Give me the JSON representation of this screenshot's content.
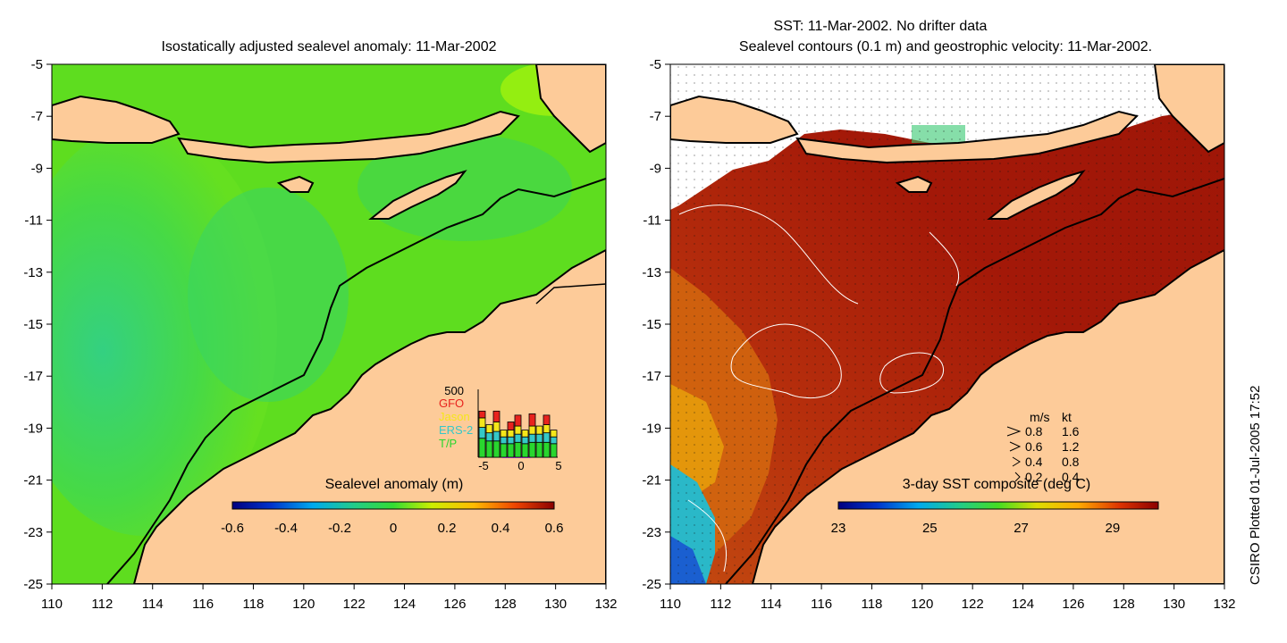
{
  "left_panel": {
    "title": "Isostatically adjusted sealevel anomaly: 11-Mar-2002",
    "colorbar": {
      "label": "Sealevel anomaly (m)",
      "ticks": [
        "-0.6",
        "-0.4",
        "-0.2",
        "0",
        "0.2",
        "0.4",
        "0.6"
      ]
    },
    "inset": {
      "top_value": "500",
      "legend": [
        {
          "label": "GFO",
          "color": "#e8231e"
        },
        {
          "label": "Jason",
          "color": "#f5e61a"
        },
        {
          "label": "ERS-2",
          "color": "#35c8c8"
        },
        {
          "label": "T/P",
          "color": "#29d62e"
        }
      ],
      "x_ticks": [
        "-5",
        "0",
        "5"
      ],
      "bars": [
        {
          "tp": 0.28,
          "ers": 0.16,
          "jason": 0.14,
          "gfo": 0.1
        },
        {
          "tp": 0.24,
          "ers": 0.12,
          "jason": 0.12,
          "gfo": 0.0
        },
        {
          "tp": 0.24,
          "ers": 0.14,
          "jason": 0.14,
          "gfo": 0.16
        },
        {
          "tp": 0.2,
          "ers": 0.1,
          "jason": 0.1,
          "gfo": 0.0
        },
        {
          "tp": 0.2,
          "ers": 0.1,
          "jason": 0.1,
          "gfo": 0.12
        },
        {
          "tp": 0.22,
          "ers": 0.12,
          "jason": 0.12,
          "gfo": 0.16
        },
        {
          "tp": 0.2,
          "ers": 0.1,
          "jason": 0.1,
          "gfo": 0.0
        },
        {
          "tp": 0.22,
          "ers": 0.12,
          "jason": 0.12,
          "gfo": 0.18
        },
        {
          "tp": 0.22,
          "ers": 0.12,
          "jason": 0.12,
          "gfo": 0.0
        },
        {
          "tp": 0.22,
          "ers": 0.14,
          "jason": 0.12,
          "gfo": 0.14
        },
        {
          "tp": 0.2,
          "ers": 0.1,
          "jason": 0.1,
          "gfo": 0.0
        }
      ]
    }
  },
  "right_panel": {
    "title_line1": "SST: 11-Mar-2002. No drifter data",
    "title_line2": "Sealevel contours (0.1 m) and geostrophic velocity: 11-Mar-2002.",
    "colorbar": {
      "label": "3-day SST composite (deg C)",
      "ticks": [
        "23",
        "25",
        "27",
        "29"
      ]
    },
    "velocity_key": {
      "header_ms": "m/s",
      "header_kt": "kt",
      "rows": [
        {
          "ms": "0.8",
          "kt": "1.6"
        },
        {
          "ms": "0.6",
          "kt": "1.2"
        },
        {
          "ms": "0.4",
          "kt": "0.8"
        },
        {
          "ms": "0.2",
          "kt": "0.4"
        }
      ]
    }
  },
  "axes": {
    "lat_ticks": [
      "-5",
      "-7",
      "-9",
      "-11",
      "-13",
      "-15",
      "-17",
      "-19",
      "-21",
      "-23",
      "-25"
    ],
    "lon_ticks": [
      "110",
      "112",
      "114",
      "116",
      "118",
      "120",
      "122",
      "124",
      "126",
      "128",
      "130",
      "132"
    ]
  },
  "credit": "CSIRO Plotted 01-Jul-2005 17:52",
  "colors": {
    "land": "#fdcb99",
    "sea_green": "#55dd22",
    "sea_warm": "#a31808",
    "coast": "#000000"
  }
}
